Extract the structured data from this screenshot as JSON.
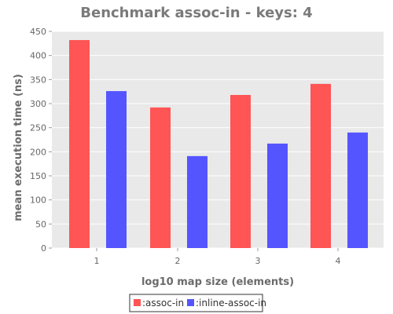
{
  "chart_data": {
    "type": "bar",
    "title": "Benchmark assoc-in - keys: 4",
    "xlabel": "log10 map size (elements)",
    "ylabel": "mean execution time (ns)",
    "categories": [
      "1",
      "2",
      "3",
      "4"
    ],
    "ylim": [
      0,
      450
    ],
    "yticks": [
      0,
      50,
      100,
      150,
      200,
      250,
      300,
      350,
      400,
      450
    ],
    "grid": true,
    "legend_position": "bottom-center",
    "series": [
      {
        "name": ":assoc-in",
        "color": "#ff5555",
        "values": [
          432,
          292,
          318,
          341
        ]
      },
      {
        "name": ":inline-assoc-in",
        "color": "#5555ff",
        "values": [
          326,
          191,
          217,
          240
        ]
      }
    ]
  },
  "colors": {
    "plot_background": "#e9e9e9",
    "grid": "#ffffff"
  }
}
